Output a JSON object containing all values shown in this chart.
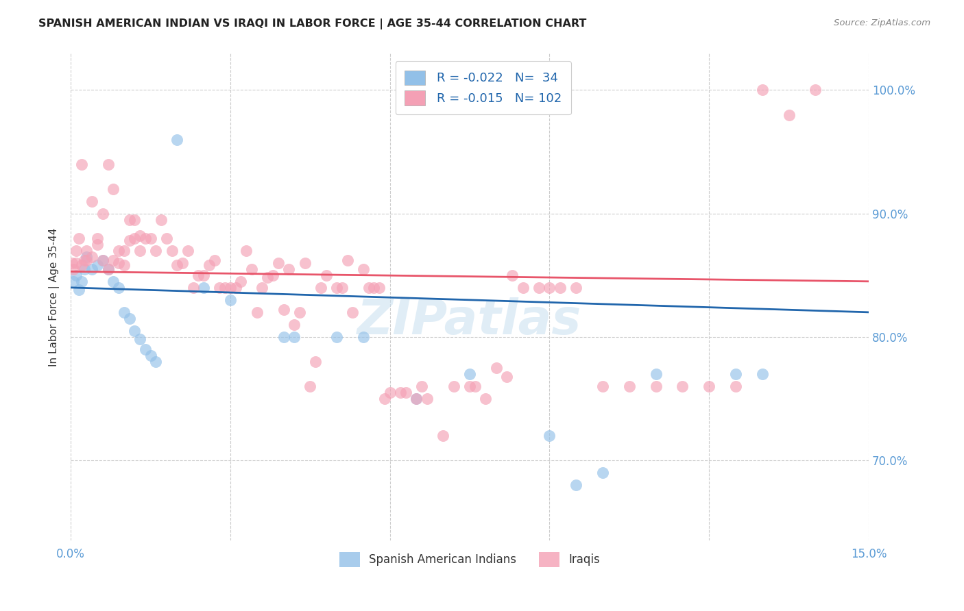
{
  "title": "SPANISH AMERICAN INDIAN VS IRAQI IN LABOR FORCE | AGE 35-44 CORRELATION CHART",
  "source": "Source: ZipAtlas.com",
  "ylabel": "In Labor Force | Age 35-44",
  "xlim": [
    0.0,
    0.15
  ],
  "ylim": [
    0.635,
    1.03
  ],
  "blue_color": "#92c0e8",
  "pink_color": "#f4a0b5",
  "blue_line_color": "#2166ac",
  "pink_line_color": "#e8556a",
  "watermark": "ZIPatlas",
  "axis_label_color": "#5b9bd5",
  "background_color": "#ffffff",
  "title_color": "#222222",
  "legend_R_blue": "R = -0.022",
  "legend_N_blue": "N=  34",
  "legend_R_pink": "R = -0.015",
  "legend_N_pink": "N= 102",
  "blue_x": [
    0.0005,
    0.001,
    0.0015,
    0.002,
    0.0025,
    0.003,
    0.004,
    0.005,
    0.006,
    0.007,
    0.008,
    0.009,
    0.01,
    0.011,
    0.012,
    0.013,
    0.014,
    0.015,
    0.016,
    0.02,
    0.025,
    0.03,
    0.04,
    0.042,
    0.05,
    0.055,
    0.065,
    0.075,
    0.09,
    0.095,
    0.1,
    0.11,
    0.125,
    0.13
  ],
  "blue_y": [
    0.845,
    0.85,
    0.838,
    0.845,
    0.855,
    0.865,
    0.855,
    0.858,
    0.862,
    0.855,
    0.845,
    0.84,
    0.82,
    0.815,
    0.805,
    0.798,
    0.79,
    0.785,
    0.78,
    0.96,
    0.84,
    0.83,
    0.8,
    0.8,
    0.8,
    0.8,
    0.75,
    0.77,
    0.72,
    0.68,
    0.69,
    0.77,
    0.77,
    0.77
  ],
  "pink_x": [
    0.0002,
    0.0005,
    0.001,
    0.001,
    0.0015,
    0.002,
    0.002,
    0.0025,
    0.003,
    0.003,
    0.004,
    0.004,
    0.005,
    0.005,
    0.006,
    0.006,
    0.007,
    0.007,
    0.008,
    0.008,
    0.009,
    0.009,
    0.01,
    0.01,
    0.011,
    0.011,
    0.012,
    0.012,
    0.013,
    0.013,
    0.014,
    0.015,
    0.016,
    0.017,
    0.018,
    0.019,
    0.02,
    0.021,
    0.022,
    0.023,
    0.024,
    0.025,
    0.026,
    0.027,
    0.028,
    0.029,
    0.03,
    0.031,
    0.032,
    0.033,
    0.034,
    0.035,
    0.036,
    0.037,
    0.038,
    0.039,
    0.04,
    0.041,
    0.042,
    0.043,
    0.044,
    0.045,
    0.046,
    0.047,
    0.048,
    0.05,
    0.051,
    0.052,
    0.053,
    0.055,
    0.056,
    0.057,
    0.058,
    0.059,
    0.06,
    0.062,
    0.063,
    0.065,
    0.066,
    0.067,
    0.07,
    0.072,
    0.075,
    0.076,
    0.078,
    0.08,
    0.082,
    0.083,
    0.085,
    0.088,
    0.09,
    0.092,
    0.095,
    0.1,
    0.105,
    0.11,
    0.115,
    0.12,
    0.125,
    0.13,
    0.135,
    0.14
  ],
  "pink_y": [
    0.86,
    0.855,
    0.87,
    0.86,
    0.88,
    0.858,
    0.94,
    0.862,
    0.87,
    0.862,
    0.865,
    0.91,
    0.875,
    0.88,
    0.862,
    0.9,
    0.855,
    0.94,
    0.862,
    0.92,
    0.86,
    0.87,
    0.858,
    0.87,
    0.878,
    0.895,
    0.88,
    0.895,
    0.882,
    0.87,
    0.88,
    0.88,
    0.87,
    0.895,
    0.88,
    0.87,
    0.858,
    0.86,
    0.87,
    0.84,
    0.85,
    0.85,
    0.858,
    0.862,
    0.84,
    0.84,
    0.84,
    0.84,
    0.845,
    0.87,
    0.855,
    0.82,
    0.84,
    0.848,
    0.85,
    0.86,
    0.822,
    0.855,
    0.81,
    0.82,
    0.86,
    0.76,
    0.78,
    0.84,
    0.85,
    0.84,
    0.84,
    0.862,
    0.82,
    0.855,
    0.84,
    0.84,
    0.84,
    0.75,
    0.755,
    0.755,
    0.755,
    0.75,
    0.76,
    0.75,
    0.72,
    0.76,
    0.76,
    0.76,
    0.75,
    0.775,
    0.768,
    0.85,
    0.84,
    0.84,
    0.84,
    0.84,
    0.84,
    0.76,
    0.76,
    0.76,
    0.76,
    0.76,
    0.76,
    1.0,
    0.98,
    1.0
  ]
}
